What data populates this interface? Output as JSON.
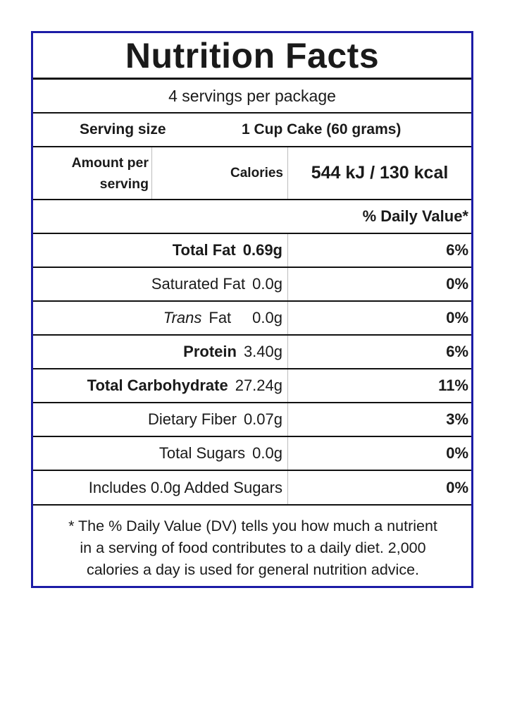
{
  "label": {
    "title": "Nutrition Facts",
    "servings_per_package": "4 servings per package",
    "serving_size_label": "Serving size",
    "serving_size_value": "1 Cup Cake (60 grams)",
    "amount_per_serving_line1": "Amount per",
    "amount_per_serving_line2": "serving",
    "calories_label": "Calories",
    "calories_value": "544 kJ / 130 kcal",
    "daily_value_header": "% Daily Value*",
    "nutrients": [
      {
        "name": "Total Fat",
        "amount": "0.69g",
        "dv": "6%"
      },
      {
        "name": "Saturated Fat",
        "amount": "0.0g",
        "dv": "0%"
      },
      {
        "name_italic": "Trans",
        "name_rest": "Fat",
        "amount": "0.0g",
        "dv": "0%"
      },
      {
        "name": "Protein",
        "amount": "3.40g",
        "dv": "6%"
      },
      {
        "name": "Total Carbohydrate",
        "amount": "27.24g",
        "dv": "11%"
      },
      {
        "name": "Dietary Fiber",
        "amount": "0.07g",
        "dv": "3%"
      },
      {
        "name": "Total Sugars",
        "amount": "0.0g",
        "dv": "0%"
      },
      {
        "name": "Includes 0.0g Added Sugars",
        "dv": "0%"
      }
    ],
    "footnote": {
      "line1": "* The % Daily Value (DV) tells you how much a nutrient",
      "line2": "in  a serving of food contributes to a daily diet. 2,000",
      "line3": "calories  a day is used for general nutrition advice."
    },
    "border_color": "#1c1ca6"
  }
}
